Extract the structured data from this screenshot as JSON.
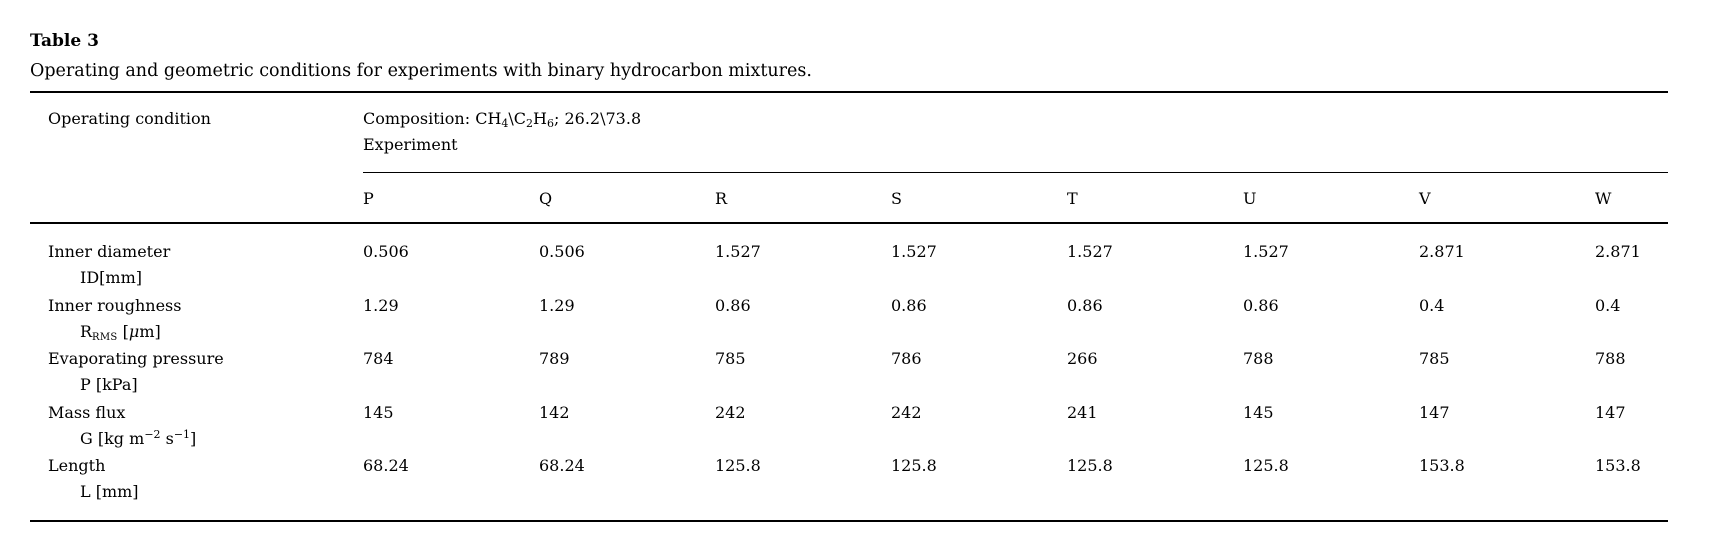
{
  "page": {
    "title": "Table 3",
    "caption": "Operating and geometric conditions for experiments with binary hydrocarbon mixtures."
  },
  "table": {
    "col1_header": "Operating condition",
    "composition": {
      "pre": "Composition: CH",
      "sub1": "4",
      "mid1": "\\C",
      "sub2": "2",
      "mid2": "H",
      "sub3": "6",
      "post": "; 26.2\\73.8"
    },
    "experiment_label": "Experiment",
    "columns": [
      "P",
      "Q",
      "R",
      "S",
      "T",
      "U",
      "V",
      "W"
    ],
    "rows": [
      {
        "label": "Inner diameter",
        "unit": {
          "text": "ID[mm]"
        },
        "values": [
          "0.506",
          "0.506",
          "1.527",
          "1.527",
          "1.527",
          "1.527",
          "2.871",
          "2.871"
        ]
      },
      {
        "label": "Inner roughness",
        "unit": {
          "pre": "R",
          "subscript": "RMS",
          "mid": " [",
          "italic": "μ",
          "post": "m]"
        },
        "values": [
          "1.29",
          "1.29",
          "0.86",
          "0.86",
          "0.86",
          "0.86",
          "0.4",
          "0.4"
        ]
      },
      {
        "label": "Evaporating pressure",
        "unit": {
          "text": "P [kPa]"
        },
        "values": [
          "784",
          "789",
          "785",
          "786",
          "266",
          "788",
          "785",
          "788"
        ]
      },
      {
        "label": "Mass flux",
        "unit": {
          "pre": "G [kg m",
          "sup1": "−2",
          "mid": " s",
          "sup2": "−1",
          "post": "]"
        },
        "values": [
          "145",
          "142",
          "242",
          "242",
          "241",
          "145",
          "147",
          "147"
        ]
      },
      {
        "label": "Length",
        "unit": {
          "text": "L [mm]"
        },
        "values": [
          "68.24",
          "68.24",
          "125.8",
          "125.8",
          "125.8",
          "125.8",
          "153.8",
          "153.8"
        ]
      }
    ]
  }
}
